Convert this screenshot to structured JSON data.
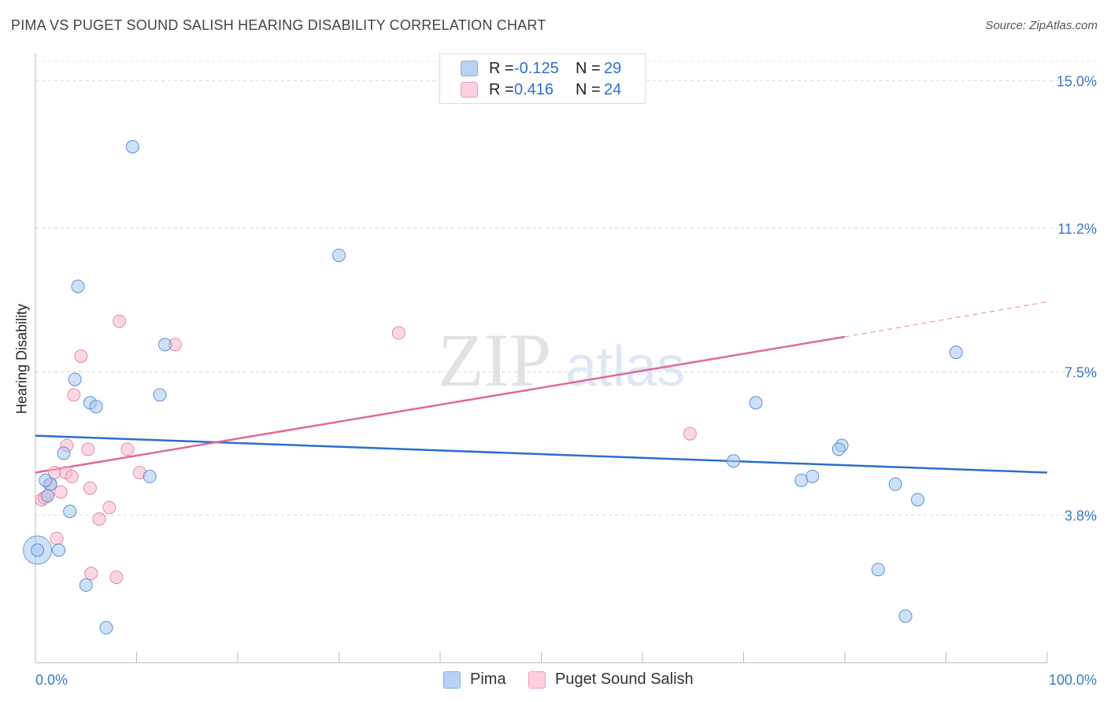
{
  "title": "PIMA VS PUGET SOUND SALISH HEARING DISABILITY CORRELATION CHART",
  "source": "Source: ZipAtlas.com",
  "watermark": {
    "zip": "ZIP",
    "atlas": "atlas"
  },
  "legend": {
    "rows": [
      {
        "r_label": "R =",
        "r_value": "-0.125",
        "n_label": "N =",
        "n_value": "29"
      },
      {
        "r_label": "R =",
        "r_value": "0.416",
        "n_label": "N =",
        "n_value": "24"
      }
    ]
  },
  "bottom_legend": {
    "pima": "Pima",
    "salish": "Puget Sound Salish"
  },
  "colors": {
    "pima": "#a8c8f0",
    "pima_line": "#2a6fcc",
    "salish": "#f5b8cc",
    "salish_line": "#e06a96",
    "tick_label": "#3a78c8"
  },
  "chart_data": {
    "type": "scatter",
    "xlabel": "",
    "ylabel": "Hearing Disability",
    "xlim": [
      0,
      100
    ],
    "ylim": [
      0,
      15.5
    ],
    "x_tick_labels": [
      "0.0%",
      "100.0%"
    ],
    "y_ticks": [
      3.8,
      7.5,
      11.2,
      15.0
    ],
    "y_tick_labels": [
      "3.8%",
      "7.5%",
      "11.2%",
      "15.0%"
    ],
    "grid": true,
    "series": [
      {
        "name": "Pima",
        "points": [
          [
            0.2,
            2.9
          ],
          [
            1.5,
            4.6
          ],
          [
            2.3,
            2.9
          ],
          [
            1.2,
            4.3
          ],
          [
            2.8,
            5.4
          ],
          [
            3.4,
            3.9
          ],
          [
            4.2,
            9.7
          ],
          [
            3.9,
            7.3
          ],
          [
            5.4,
            6.7
          ],
          [
            6.0,
            6.6
          ],
          [
            5.0,
            2.0
          ],
          [
            7.0,
            0.9
          ],
          [
            9.6,
            13.3
          ],
          [
            12.8,
            8.2
          ],
          [
            12.3,
            6.9
          ],
          [
            11.3,
            4.8
          ],
          [
            30.0,
            10.5
          ],
          [
            71.2,
            6.7
          ],
          [
            69.0,
            5.2
          ],
          [
            75.7,
            4.7
          ],
          [
            76.8,
            4.8
          ],
          [
            79.7,
            5.6
          ],
          [
            79.4,
            5.5
          ],
          [
            91.0,
            8.0
          ],
          [
            85.0,
            4.6
          ],
          [
            87.2,
            4.2
          ],
          [
            83.3,
            2.4
          ],
          [
            86.0,
            1.2
          ],
          [
            1.0,
            4.7
          ]
        ],
        "trend": {
          "x": [
            0,
            100
          ],
          "y": [
            5.85,
            4.9
          ]
        }
      },
      {
        "name": "Puget Sound Salish",
        "points": [
          [
            0.6,
            4.2
          ],
          [
            1.2,
            4.3
          ],
          [
            1.9,
            4.9
          ],
          [
            2.5,
            4.4
          ],
          [
            3.0,
            4.9
          ],
          [
            3.1,
            5.6
          ],
          [
            3.8,
            6.9
          ],
          [
            4.5,
            7.9
          ],
          [
            5.2,
            5.5
          ],
          [
            5.4,
            4.5
          ],
          [
            6.3,
            3.7
          ],
          [
            7.3,
            4.0
          ],
          [
            8.0,
            2.2
          ],
          [
            8.3,
            8.8
          ],
          [
            9.1,
            5.5
          ],
          [
            10.3,
            4.9
          ],
          [
            13.8,
            8.2
          ],
          [
            35.9,
            8.5
          ],
          [
            64.7,
            5.9
          ],
          [
            1.4,
            4.6
          ],
          [
            0.9,
            4.25
          ],
          [
            2.1,
            3.2
          ],
          [
            5.5,
            2.3
          ],
          [
            3.6,
            4.8
          ]
        ],
        "trend": {
          "x": [
            0,
            80
          ],
          "y": [
            4.9,
            8.4
          ]
        },
        "trend_extension": {
          "x": [
            80,
            100
          ],
          "y": [
            8.4,
            9.3
          ]
        }
      }
    ]
  }
}
